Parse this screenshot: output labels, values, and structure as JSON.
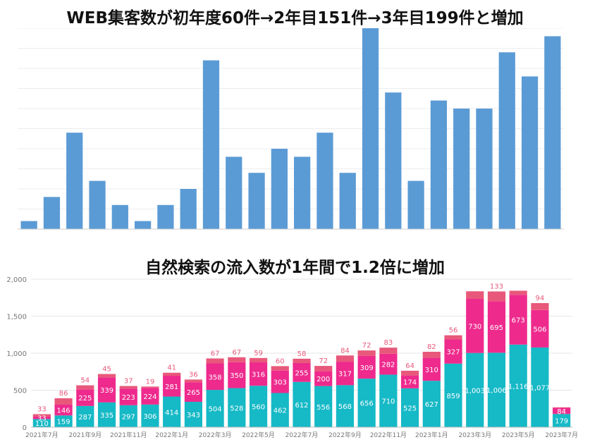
{
  "charts": [
    {
      "type": "bar",
      "title": "WEB集客数が初年度60件→2年目151件→3年目199件と増加",
      "values": [
        1,
        4,
        12,
        6,
        3,
        1,
        3,
        5,
        21,
        9,
        7,
        10,
        9,
        12,
        7,
        25,
        17,
        6,
        16,
        15,
        15,
        22,
        19,
        24
      ],
      "ylim": [
        0,
        25
      ],
      "grid": true,
      "color": "#5b9bd5"
    },
    {
      "type": "bar",
      "stacked": true,
      "title": "自然検索の流入数が1年間で1.2倍に増加",
      "ylim": [
        0,
        2000
      ],
      "yticks": [
        0,
        500,
        1000,
        1500,
        2000
      ],
      "ytick_labels": [
        "0",
        "500",
        "1,000",
        "1,500",
        "2,000"
      ],
      "xtick_labels": [
        "2021年7月",
        "2021年9月",
        "2021年11月",
        "2022年1月",
        "2022年3月",
        "2022年5月",
        "2022年7月",
        "2022年9月",
        "2022年11月",
        "2023年1月",
        "2023年3月",
        "2023年5月",
        "2023年7月"
      ],
      "colors": {
        "bottom": "#16b9c6",
        "middle": "#ee2a8d",
        "top": "#e8587a"
      },
      "bottom_values": [
        110,
        159,
        287,
        335,
        297,
        306,
        414,
        343,
        504,
        528,
        560,
        462,
        612,
        556,
        568,
        656,
        710,
        525,
        627,
        859,
        1003,
        1006,
        1116,
        1077,
        179
      ],
      "middle_values": [
        33,
        146,
        225,
        339,
        223,
        224,
        281,
        265,
        358,
        350,
        316,
        303,
        255,
        200,
        317,
        309,
        282,
        174,
        310,
        327,
        730,
        695,
        673,
        506,
        84
      ],
      "top_values": [
        33,
        86,
        54,
        45,
        37,
        19,
        41,
        36,
        67,
        67,
        59,
        60,
        58,
        72,
        84,
        72,
        83,
        64,
        82,
        56,
        103,
        133,
        55,
        94,
        6
      ],
      "bottom_labels": [
        "110",
        "159",
        "287",
        "335",
        "297",
        "306",
        "414",
        "343",
        "504",
        "528",
        "560",
        "462",
        "612",
        "556",
        "568",
        "656",
        "710",
        "525",
        "627",
        "859",
        "1,003",
        "1,006",
        "1,116",
        "1,077",
        "179"
      ],
      "middle_labels": [
        "33",
        "146",
        "225",
        "339",
        "223",
        "224",
        "281",
        "265",
        "358",
        "350",
        "316",
        "303",
        "255",
        "200",
        "317",
        "309",
        "282",
        "174",
        "310",
        "327",
        "730",
        "695",
        "673",
        "506",
        "84"
      ],
      "top_labels": [
        "33",
        "86",
        "54",
        "45",
        "37",
        "19",
        "41",
        "36",
        "67",
        "67",
        "59",
        "60",
        "58",
        "72",
        "84",
        "72",
        "83",
        "64",
        "82",
        "56",
        "",
        "133",
        "",
        "94",
        ""
      ]
    }
  ]
}
